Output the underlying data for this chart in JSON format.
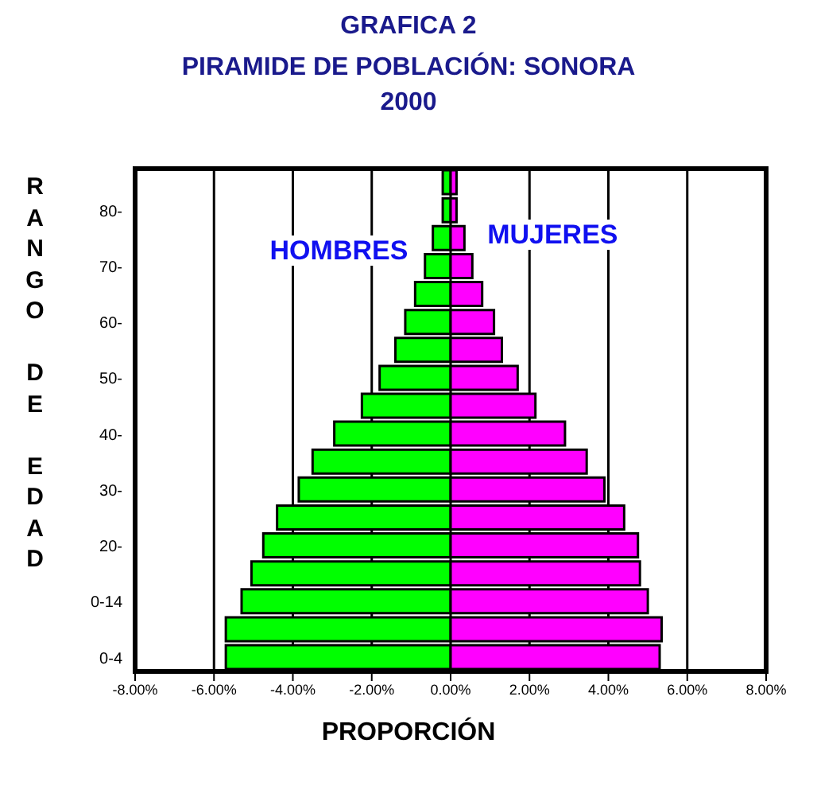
{
  "chart_data": {
    "type": "bar",
    "orientation": "horizontal",
    "stacked": true,
    "title": "GRAFICA 2",
    "subtitle": "PIRAMIDE DE POBLACIÓN: SONORA 2000",
    "xlabel": "PROPORCIÓN",
    "ylabel": "RANGO DE EDAD",
    "categories": [
      null,
      "80-",
      null,
      "70-",
      null,
      "60-",
      null,
      "50-",
      null,
      "40-",
      null,
      "30-",
      null,
      "20-",
      null,
      "0-14",
      null,
      "0-4"
    ],
    "series": [
      {
        "name": "HOMBRES",
        "color": "#00ff00",
        "values": [
          -0.2,
          -0.2,
          -0.45,
          -0.65,
          -0.9,
          -1.15,
          -1.4,
          -1.8,
          -2.25,
          -2.95,
          -3.5,
          -3.85,
          -4.4,
          -4.75,
          -5.05,
          -5.3,
          -5.7,
          -5.7
        ]
      },
      {
        "name": "MUJERES",
        "color": "#ff00ff",
        "values": [
          0.15,
          0.15,
          0.35,
          0.55,
          0.8,
          1.1,
          1.3,
          1.7,
          2.15,
          2.9,
          3.45,
          3.9,
          4.4,
          4.75,
          4.8,
          5.0,
          5.35,
          5.3
        ]
      }
    ],
    "xlim": [
      -8,
      8
    ],
    "xticks": [
      {
        "value": -8,
        "label": "-8.00%"
      },
      {
        "value": -6,
        "label": "-6.00%"
      },
      {
        "value": -4,
        "label": "-4.00%"
      },
      {
        "value": -2,
        "label": "-2.00%"
      },
      {
        "value": 0,
        "label": "0.00%"
      },
      {
        "value": 2,
        "label": "2.00%"
      },
      {
        "value": 4,
        "label": "4.00%"
      },
      {
        "value": 6,
        "label": "6.00%"
      },
      {
        "value": 8,
        "label": "8.00%"
      }
    ],
    "grid": "x",
    "legend": false
  }
}
